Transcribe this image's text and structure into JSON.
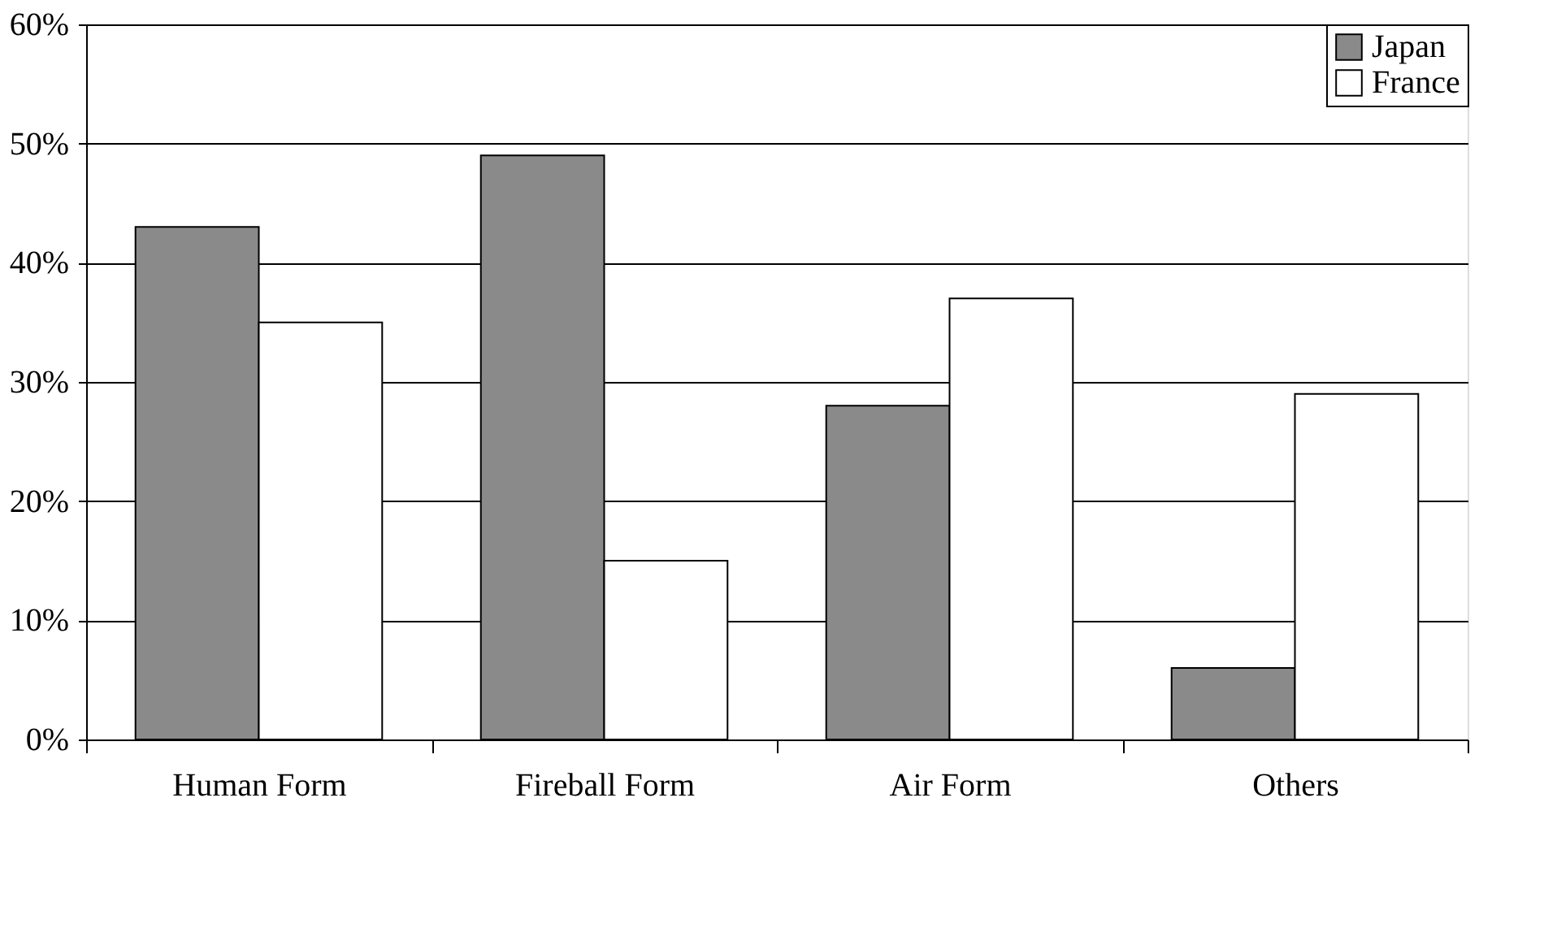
{
  "chart_data": {
    "type": "bar",
    "categories": [
      "Human Form",
      "Fireball Form",
      "Air Form",
      "Others"
    ],
    "series": [
      {
        "name": "Japan",
        "color": "#8a8a8a",
        "values": [
          43,
          49,
          28,
          6
        ]
      },
      {
        "name": "France",
        "color": "#ffffff",
        "values": [
          35,
          15,
          37,
          29
        ]
      }
    ],
    "ylim": [
      0,
      60
    ],
    "yticks": [
      {
        "value": 0,
        "label": "0%"
      },
      {
        "value": 10,
        "label": "10%"
      },
      {
        "value": 20,
        "label": "20%"
      },
      {
        "value": 30,
        "label": "30%"
      },
      {
        "value": 40,
        "label": "40%"
      },
      {
        "value": 50,
        "label": "50%"
      },
      {
        "value": 60,
        "label": "60%"
      }
    ],
    "grid": "y",
    "legend": "top right"
  }
}
